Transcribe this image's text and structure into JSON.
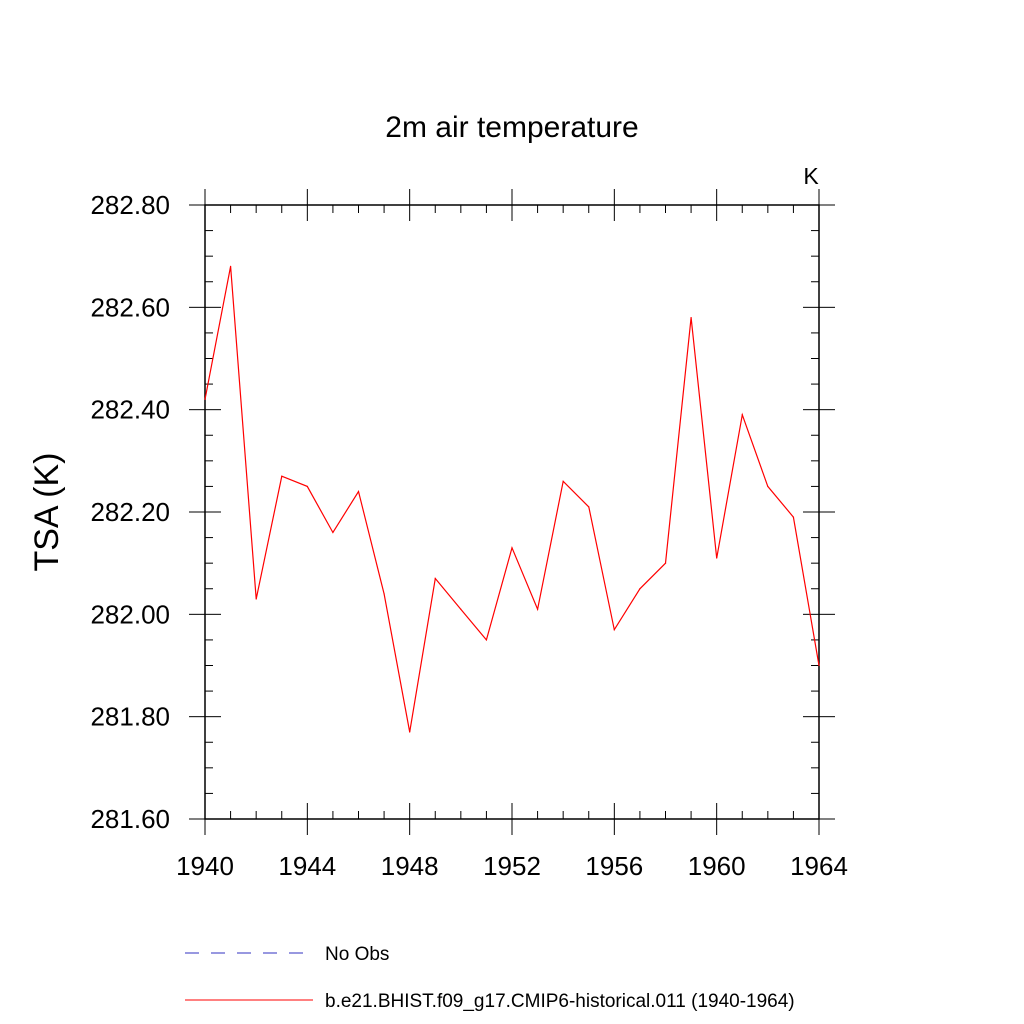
{
  "chart_data": {
    "type": "line",
    "title": "2m air temperature",
    "ylabel": "TSA  (K)",
    "units": "K",
    "xlim": [
      1940,
      1964
    ],
    "ylim": [
      281.6,
      282.8
    ],
    "x_ticks": [
      "1940",
      "1944",
      "1948",
      "1952",
      "1956",
      "1960",
      "1964"
    ],
    "y_ticks": [
      "281.60",
      "281.80",
      "282.00",
      "282.20",
      "282.40",
      "282.60",
      "282.80"
    ],
    "grid": false,
    "legend_position": "bottom",
    "series": [
      {
        "name": "b.e21.BHIST.f09_g17.CMIP6-historical.011 (1940-1964)",
        "color": "#ff0000",
        "style": "solid",
        "x": [
          1940,
          1941,
          1942,
          1943,
          1944,
          1945,
          1946,
          1947,
          1948,
          1949,
          1950,
          1951,
          1952,
          1953,
          1954,
          1955,
          1956,
          1957,
          1958,
          1959,
          1960,
          1961,
          1962,
          1963,
          1964
        ],
        "values": [
          282.42,
          282.68,
          282.03,
          282.27,
          282.25,
          282.16,
          282.24,
          282.04,
          281.77,
          282.07,
          282.01,
          281.95,
          282.13,
          282.01,
          282.26,
          282.21,
          281.97,
          282.05,
          282.1,
          282.58,
          282.11,
          282.39,
          282.25,
          282.19,
          281.9
        ]
      }
    ],
    "legend": [
      {
        "label": "No Obs",
        "color": "#3030c0",
        "style": "dashed"
      },
      {
        "label": "b.e21.BHIST.f09_g17.CMIP6-historical.011 (1940-1964)",
        "color": "#ff0000",
        "style": "solid"
      }
    ]
  }
}
